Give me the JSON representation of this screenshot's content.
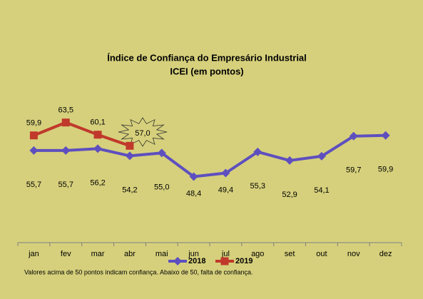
{
  "chart_data": {
    "type": "line",
    "title": "Índice de Confiança do Empresário Industrial",
    "subtitle": "ICEI (em pontos)",
    "categories": [
      "jan",
      "fev",
      "mar",
      "abr",
      "mai",
      "jun",
      "jul",
      "ago",
      "set",
      "out",
      "nov",
      "dez"
    ],
    "series": [
      {
        "name": "2018",
        "color": "#5e4fbf",
        "marker": "diamond",
        "values": [
          55.7,
          55.7,
          56.2,
          54.2,
          55.0,
          48.4,
          49.4,
          55.3,
          52.9,
          54.1,
          59.7,
          59.9
        ],
        "value_labels": [
          "55,7",
          "55,7",
          "56,2",
          "54,2",
          "55,0",
          "48,4",
          "49,4",
          "55,3",
          "52,9",
          "54,1",
          "59,7",
          "59,9"
        ]
      },
      {
        "name": "2019",
        "color": "#c0392b",
        "marker": "square",
        "values": [
          59.9,
          63.5,
          60.1,
          57.0,
          null,
          null,
          null,
          null,
          null,
          null,
          null,
          null
        ],
        "value_labels": [
          "59,9",
          "63,5",
          "60,1",
          "57,0",
          null,
          null,
          null,
          null,
          null,
          null,
          null,
          null
        ]
      }
    ],
    "ylim": [
      30,
      70
    ],
    "legend": "bottom",
    "footnote": "Valores acima de 50 pontos indicam confiança. Abaixo de 50, falta de confiança."
  }
}
